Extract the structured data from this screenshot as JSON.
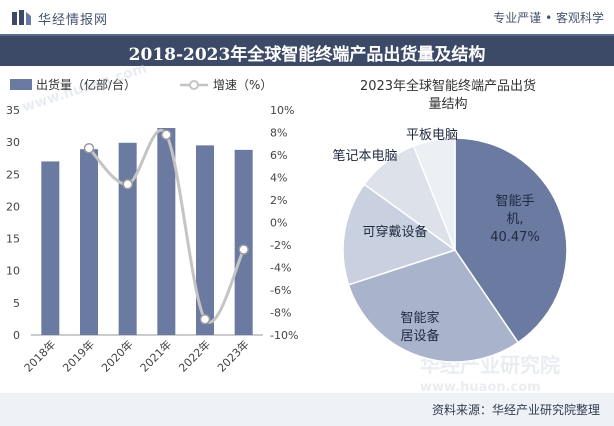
{
  "brand": {
    "name": "华经情报网",
    "slogan": "专业严谨 • 客观科学"
  },
  "title": "2018-2023年全球智能终端产品出货量及结构",
  "watermark": {
    "cn": "华经产业研究院",
    "url": "www.huaon.com"
  },
  "footer": {
    "source": "资料来源：华经产业研究院整理"
  },
  "colors": {
    "bar": "#6b7aa1",
    "line": "#c4c4c4",
    "header": "#3c4a67",
    "pie": [
      "#6b7aa1",
      "#a9b3cb",
      "#c9d0df",
      "#dde2ea",
      "#eceff4"
    ]
  },
  "chart_data": [
    {
      "type": "bar+line",
      "categories": [
        "2018年",
        "2019年",
        "2020年",
        "2021年",
        "2022年",
        "2023年"
      ],
      "series": [
        {
          "name": "出货量（亿部/台）",
          "type": "bar",
          "axis": "left",
          "values": [
            27.0,
            28.9,
            29.9,
            32.2,
            29.5,
            28.8
          ]
        },
        {
          "name": "增速（%）",
          "type": "line",
          "axis": "right",
          "values": [
            null,
            6.6,
            3.4,
            7.8,
            -8.6,
            -2.4
          ]
        }
      ],
      "y_left": {
        "ylim": [
          0,
          35
        ],
        "ticks": [
          "0",
          "5",
          "10",
          "15",
          "20",
          "25",
          "30",
          "35"
        ]
      },
      "y_right": {
        "ylim": [
          -10,
          10
        ],
        "ticks": [
          "-10%",
          "-8%",
          "-6%",
          "-4%",
          "-2%",
          "0%",
          "2%",
          "4%",
          "6%",
          "8%",
          "10%"
        ]
      },
      "legend": "top-left",
      "grid": false
    },
    {
      "type": "pie",
      "title": "2023年全球智能终端产品出货量结构",
      "slices": [
        {
          "label": "智能手机,",
          "value_label": "40.47%",
          "value": 40.47
        },
        {
          "label": "智能家居设备",
          "value": 29.5
        },
        {
          "label": "可穿戴设备",
          "value": 15.0
        },
        {
          "label": "笔记本电脑",
          "value": 9.0
        },
        {
          "label": "平板电脑",
          "value": 6.03
        }
      ]
    }
  ]
}
